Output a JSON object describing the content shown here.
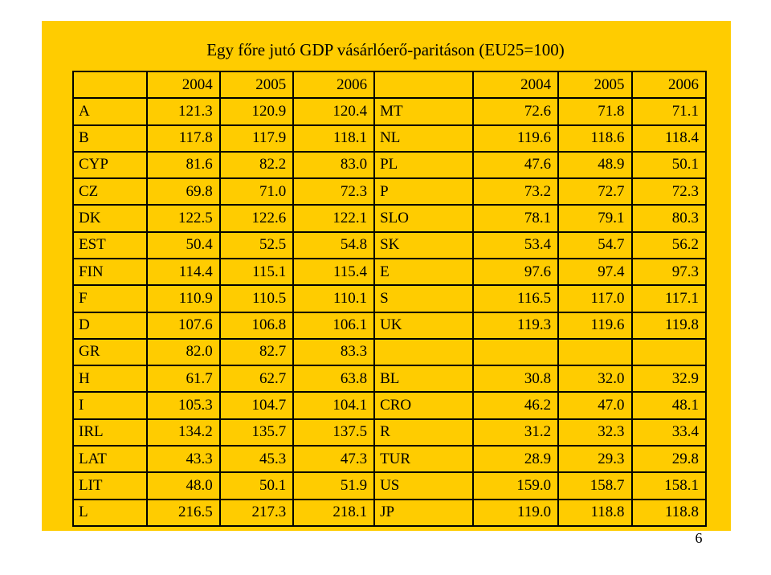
{
  "slide": {
    "title": "Egy főre jutó GDP vásárlóerő-paritáson (EU25=100)",
    "page_number": "6",
    "colors": {
      "panel": "#ffcc00",
      "background": "#ffffff",
      "border": "#000000"
    }
  },
  "table": {
    "header": [
      "",
      "2004",
      "2005",
      "2006",
      "",
      "2004",
      "2005",
      "2006"
    ],
    "rows": [
      [
        "A",
        "121.3",
        "120.9",
        "120.4",
        "MT",
        "72.6",
        "71.8",
        "71.1"
      ],
      [
        "B",
        "117.8",
        "117.9",
        "118.1",
        "NL",
        "119.6",
        "118.6",
        "118.4"
      ],
      [
        "CYP",
        "81.6",
        "82.2",
        "83.0",
        "PL",
        "47.6",
        "48.9",
        "50.1"
      ],
      [
        "CZ",
        "69.8",
        "71.0",
        "72.3",
        "P",
        "73.2",
        "72.7",
        "72.3"
      ],
      [
        "DK",
        "122.5",
        "122.6",
        "122.1",
        "SLO",
        "78.1",
        "79.1",
        "80.3"
      ],
      [
        "EST",
        "50.4",
        "52.5",
        "54.8",
        "SK",
        "53.4",
        "54.7",
        "56.2"
      ],
      [
        "FIN",
        "114.4",
        "115.1",
        "115.4",
        "E",
        "97.6",
        "97.4",
        "97.3"
      ],
      [
        "F",
        "110.9",
        "110.5",
        "110.1",
        "S",
        "116.5",
        "117.0",
        "117.1"
      ],
      [
        "D",
        "107.6",
        "106.8",
        "106.1",
        "UK",
        "119.3",
        "119.6",
        "119.8"
      ],
      [
        "GR",
        "82.0",
        "82.7",
        "83.3",
        "",
        "",
        "",
        ""
      ],
      [
        "H",
        "61.7",
        "62.7",
        "63.8",
        "BL",
        "30.8",
        "32.0",
        "32.9"
      ],
      [
        "I",
        "105.3",
        "104.7",
        "104.1",
        "CRO",
        "46.2",
        "47.0",
        "48.1"
      ],
      [
        "IRL",
        "134.2",
        "135.7",
        "137.5",
        "R",
        "31.2",
        "32.3",
        "33.4"
      ],
      [
        "LAT",
        "43.3",
        "45.3",
        "47.3",
        "TUR",
        "28.9",
        "29.3",
        "29.8"
      ],
      [
        "LIT",
        "48.0",
        "50.1",
        "51.9",
        "US",
        "159.0",
        "158.7",
        "158.1"
      ],
      [
        "L",
        "216.5",
        "217.3",
        "218.1",
        "JP",
        "119.0",
        "118.8",
        "118.8"
      ]
    ]
  }
}
